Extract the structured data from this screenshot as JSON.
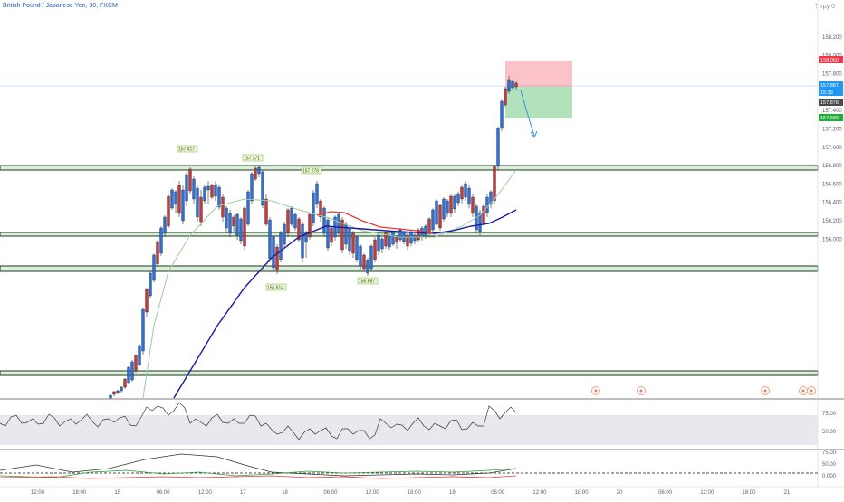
{
  "header": {
    "title": "British Pound / Japanese Yen, 30, FXCM",
    "corner_label": "⇡ грy 0"
  },
  "price_axis": {
    "ticks": [
      "158.200",
      "158.000",
      "157.800",
      "157.600",
      "157.400",
      "157.200",
      "157.000",
      "156.800",
      "156.600",
      "156.400",
      "156.200",
      "156.000"
    ],
    "badges": {
      "stop": {
        "text": "158.050",
        "color": "#f23645"
      },
      "last": {
        "text": "157.887",
        "color": "#2196f3"
      },
      "countdown": {
        "text": "15:39",
        "color": "#2196f3"
      },
      "cursor": {
        "text": "157.878",
        "color": "#4a4a4a"
      },
      "target": {
        "text": "157.680",
        "color": "#22ab3c"
      }
    }
  },
  "annotations": [
    {
      "text": "157.417",
      "kind": "high"
    },
    {
      "text": "157.371",
      "kind": "high"
    },
    {
      "text": "157.278",
      "kind": "high"
    },
    {
      "text": "156.614",
      "kind": "low"
    },
    {
      "text": "156.687",
      "kind": "low"
    }
  ],
  "rsi_axis": {
    "ticks": [
      "75.00",
      "50.00"
    ]
  },
  "dmi_axis": {
    "ticks": [
      "75.00",
      "50.00",
      "0.000"
    ]
  },
  "time_axis": {
    "labels": [
      "12:00",
      "18:00",
      "15",
      "06:00",
      "12:00",
      "17",
      "18",
      "06:00",
      "12:00",
      "18:00",
      "19",
      "06:00",
      "12:00",
      "18:00",
      "20",
      "06:00",
      "12:00",
      "18:00",
      "21"
    ]
  },
  "event_icons": [
    "info-event-icon",
    "flag-event-icon",
    "info-event-icon",
    "info-event-icon",
    "flag-event-icon"
  ],
  "colors": {
    "up": "#26a69a",
    "down": "#ef5350",
    "candle_up": "#2f6fd6",
    "candle_down": "#c23b3b",
    "sma_fast": "#9ccc9c",
    "ema_slow": "#1a1aa0",
    "ema_mid": "#e53935",
    "zone_fill": "#dcefdc",
    "zone_line": "#1b3a1b",
    "short_stop_fill": "rgba(242,54,69,0.3)",
    "short_target_fill": "rgba(34,171,60,0.35)",
    "arrow": "#3b8fe0"
  }
}
